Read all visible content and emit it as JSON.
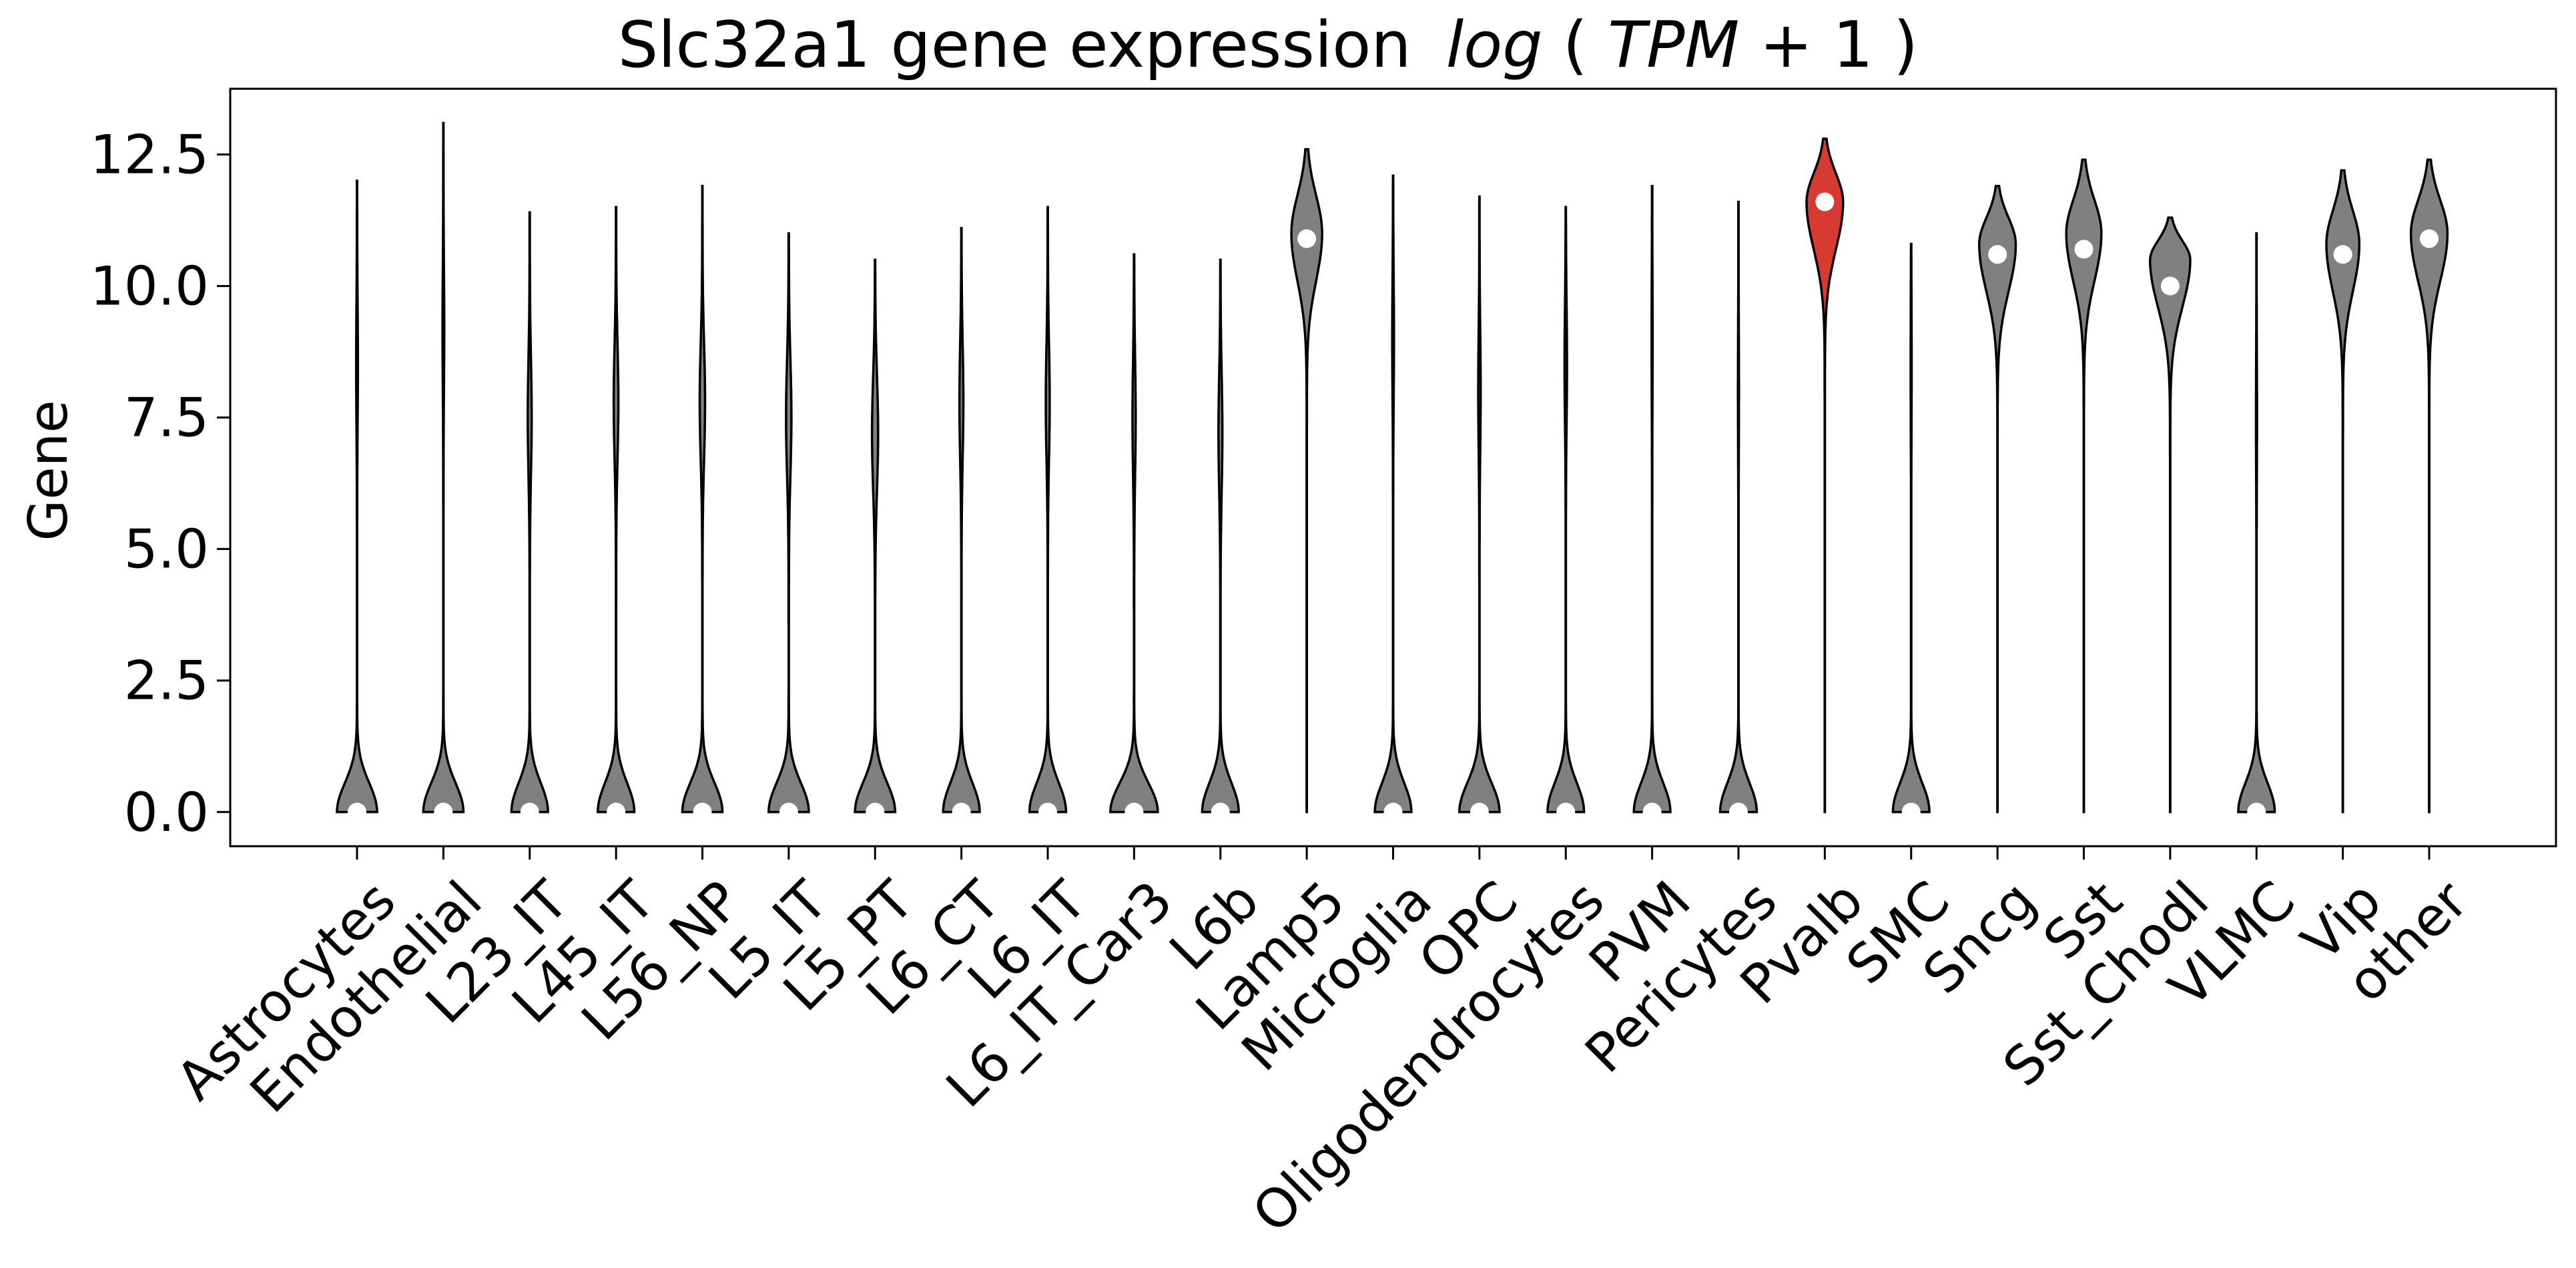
{
  "chart_data": {
    "type": "violin",
    "title": "Slc32a1 gene expression",
    "title_math": {
      "fn": "log",
      "open": "(",
      "var": "TPM",
      "op": " + 1",
      "close": ")"
    },
    "xlabel": "",
    "ylabel": "Gene",
    "ylim": [
      -0.65,
      13.75
    ],
    "yticks": [
      "0.0",
      "2.5",
      "5.0",
      "7.5",
      "10.0",
      "12.5"
    ],
    "ytick_values": [
      0,
      2.5,
      5,
      7.5,
      10,
      12.5
    ],
    "grid": false,
    "colors": {
      "default": "#808080",
      "highlight": "#d73a31",
      "median_dot": "#ffffff",
      "outline": "#000000"
    },
    "highlight_category": "Pvalb",
    "categories": [
      "Astrocytes",
      "Endothelial",
      "L23_IT",
      "L45_IT",
      "L56_NP",
      "L5_IT",
      "L5_PT",
      "L6_CT",
      "L6_IT",
      "L6_IT_Car3",
      "L6b",
      "Lamp5",
      "Microglia",
      "OPC",
      "Oligodendrocytes",
      "PVM",
      "Pericytes",
      "Pvalb",
      "SMC",
      "Sncg",
      "Sst",
      "Sst_Chodl",
      "VLMC",
      "Vip",
      "other"
    ],
    "violins": [
      {
        "min": 0,
        "max": 12.0,
        "median": 0,
        "upper_mode": 8.5,
        "upper_width": 0.02,
        "lower_width": 0.55
      },
      {
        "min": 0,
        "max": 13.1,
        "median": 0,
        "upper_mode": 9.2,
        "upper_width": 0.02,
        "lower_width": 0.55
      },
      {
        "min": 0,
        "max": 11.4,
        "median": 0,
        "upper_mode": 7.5,
        "upper_width": 0.05,
        "lower_width": 0.5
      },
      {
        "min": 0,
        "max": 11.5,
        "median": 0,
        "upper_mode": 7.8,
        "upper_width": 0.06,
        "lower_width": 0.5
      },
      {
        "min": 0,
        "max": 11.9,
        "median": 0,
        "upper_mode": 7.8,
        "upper_width": 0.07,
        "lower_width": 0.55
      },
      {
        "min": 0,
        "max": 11.0,
        "median": 0,
        "upper_mode": 7.5,
        "upper_width": 0.07,
        "lower_width": 0.55
      },
      {
        "min": 0,
        "max": 10.5,
        "median": 0,
        "upper_mode": 7.2,
        "upper_width": 0.08,
        "lower_width": 0.55
      },
      {
        "min": 0,
        "max": 11.1,
        "median": 0,
        "upper_mode": 7.8,
        "upper_width": 0.05,
        "lower_width": 0.5
      },
      {
        "min": 0,
        "max": 11.5,
        "median": 0,
        "upper_mode": 7.8,
        "upper_width": 0.05,
        "lower_width": 0.5
      },
      {
        "min": 0,
        "max": 10.6,
        "median": 0,
        "upper_mode": 7.5,
        "upper_width": 0.04,
        "lower_width": 0.65
      },
      {
        "min": 0,
        "max": 10.5,
        "median": 0,
        "upper_mode": 7.2,
        "upper_width": 0.05,
        "lower_width": 0.5
      },
      {
        "min": 0,
        "max": 12.6,
        "median": 10.9,
        "upper_mode": 11.0,
        "upper_width": 0.42,
        "lower_width": 0.0
      },
      {
        "min": 0,
        "max": 12.1,
        "median": 0,
        "upper_mode": 9.0,
        "upper_width": 0.02,
        "lower_width": 0.5
      },
      {
        "min": 0,
        "max": 11.7,
        "median": 0,
        "upper_mode": 8.0,
        "upper_width": 0.03,
        "lower_width": 0.55
      },
      {
        "min": 0,
        "max": 11.5,
        "median": 0,
        "upper_mode": 8.5,
        "upper_width": 0.03,
        "lower_width": 0.5
      },
      {
        "min": 0,
        "max": 11.9,
        "median": 0,
        "upper_mode": 9.0,
        "upper_width": 0.01,
        "lower_width": 0.5
      },
      {
        "min": 0,
        "max": 11.6,
        "median": 0,
        "upper_mode": 8.0,
        "upper_width": 0.01,
        "lower_width": 0.5
      },
      {
        "min": 0,
        "max": 12.8,
        "median": 11.6,
        "upper_mode": 11.6,
        "upper_width": 0.5,
        "lower_width": 0.0
      },
      {
        "min": 0,
        "max": 10.8,
        "median": 0,
        "upper_mode": 8.5,
        "upper_width": 0.01,
        "lower_width": 0.5
      },
      {
        "min": 0,
        "max": 11.9,
        "median": 10.6,
        "upper_mode": 10.8,
        "upper_width": 0.5,
        "lower_width": 0.0
      },
      {
        "min": 0,
        "max": 12.4,
        "median": 10.7,
        "upper_mode": 11.0,
        "upper_width": 0.48,
        "lower_width": 0.0
      },
      {
        "min": 0,
        "max": 11.3,
        "median": 10.0,
        "upper_mode": 10.5,
        "upper_width": 0.55,
        "lower_width": 0.0
      },
      {
        "min": 0,
        "max": 11.0,
        "median": 0,
        "upper_mode": 7.5,
        "upper_width": 0.01,
        "lower_width": 0.5
      },
      {
        "min": 0,
        "max": 12.2,
        "median": 10.6,
        "upper_mode": 10.8,
        "upper_width": 0.45,
        "lower_width": 0.0
      },
      {
        "min": 0,
        "max": 12.4,
        "median": 10.9,
        "upper_mode": 11.0,
        "upper_width": 0.5,
        "lower_width": 0.0
      }
    ]
  }
}
